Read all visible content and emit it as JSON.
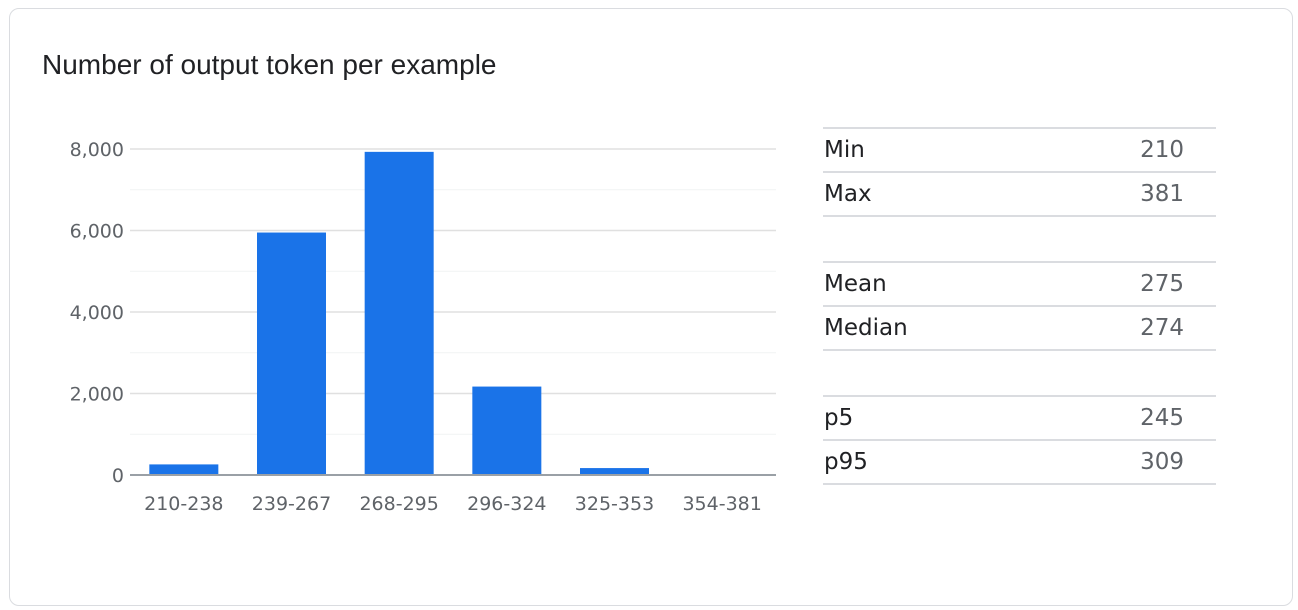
{
  "title": "Number of output token per example",
  "chart_data": {
    "type": "bar",
    "title": "Number of output token per example",
    "categories": [
      "210-238",
      "239-267",
      "268-295",
      "296-324",
      "325-353",
      "354-381"
    ],
    "values": [
      260,
      5950,
      7930,
      2170,
      170,
      10
    ],
    "ylim": [
      0,
      8000
    ],
    "yticks": [
      "0",
      "2,000",
      "4,000",
      "6,000",
      "8,000"
    ],
    "ytick_values": [
      0,
      2000,
      4000,
      6000,
      8000
    ],
    "minor_grid": [
      1000,
      3000,
      5000,
      7000
    ],
    "xlabel": "",
    "ylabel": "",
    "grid": true,
    "legend": "none",
    "bar_color": "#1a73e8"
  },
  "stats": [
    [
      {
        "label": "Min",
        "value": "210"
      },
      {
        "label": "Max",
        "value": "381"
      }
    ],
    [
      {
        "label": "Mean",
        "value": "275"
      },
      {
        "label": "Median",
        "value": "274"
      }
    ],
    [
      {
        "label": "p5",
        "value": "245"
      },
      {
        "label": "p95",
        "value": "309"
      }
    ]
  ]
}
